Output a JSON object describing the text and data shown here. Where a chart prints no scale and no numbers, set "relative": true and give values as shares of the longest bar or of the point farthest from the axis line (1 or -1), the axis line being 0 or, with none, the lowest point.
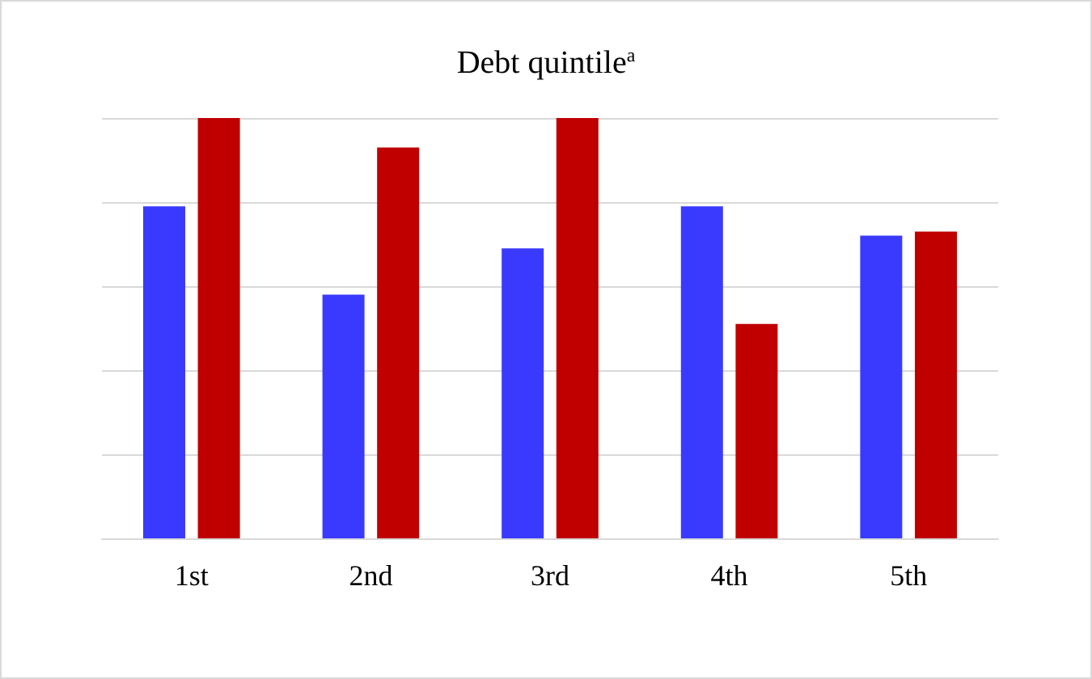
{
  "chart_data": {
    "type": "bar",
    "title": "Debt quintile$^{a}$",
    "categories": [
      "1st",
      "2nd",
      "3rd",
      "4th",
      "5th"
    ],
    "relative": true,
    "grid": "y",
    "series": [
      {
        "color": "#3a3aff",
        "values": [
          0.79,
          0.58,
          0.69,
          0.79,
          0.72
        ]
      },
      {
        "color": "#c00000",
        "values": [
          1,
          0.93,
          1,
          0.51,
          0.73
        ]
      }
    ]
  }
}
